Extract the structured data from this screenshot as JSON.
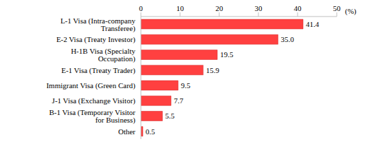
{
  "chart_data": {
    "type": "bar",
    "orientation": "horizontal",
    "xlabel": "(%)",
    "categories": [
      "L-1 Visa (Intra-company Transferee)",
      "E-2 Visa (Treaty Investor)",
      "H-1B Visa (Specialty Occupation)",
      "E-1 Visa (Treaty Trader)",
      "Immigrant Visa (Green Card)",
      "J-1 Visa (Exchange Visitor)",
      "B-1 Visa (Temporary Visitor for Business)",
      "Other"
    ],
    "values": [
      41.4,
      35.0,
      19.5,
      15.9,
      9.5,
      7.7,
      5.5,
      0.5
    ],
    "value_labels": [
      "41.4",
      "35.0",
      "19.5",
      "15.9",
      "9.5",
      "7.7",
      "5.5",
      "0.5"
    ],
    "color": "#ff4040",
    "xlim": [
      0,
      50
    ],
    "xticks": [
      0,
      10,
      20,
      30,
      40,
      50
    ],
    "data_labels": true,
    "grid": false
  }
}
